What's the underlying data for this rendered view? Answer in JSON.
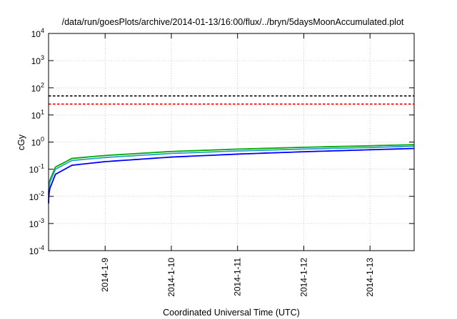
{
  "chart_data": {
    "type": "line",
    "title": "/data/run/goesPlots/archive/2014-01-13/16:00/flux/../bryn/5daysMoonAccumulated.plot",
    "xlabel": "Coordinated Universal Time (UTC)",
    "ylabel": "cGy",
    "yscale": "log",
    "ylim": [
      0.0001,
      10000
    ],
    "xlim": [
      "2014-01-08T03:30",
      "2014-01-13T16:00"
    ],
    "x_ticks": [
      {
        "x": "2014-01-09",
        "label": "2014-1-9"
      },
      {
        "x": "2014-01-10",
        "label": "2014-1-10"
      },
      {
        "x": "2014-01-11",
        "label": "2014-1-11"
      },
      {
        "x": "2014-01-12",
        "label": "2014-1-12"
      },
      {
        "x": "2014-01-13",
        "label": "2014-1-13"
      }
    ],
    "y_ticks": [
      {
        "y": 0.0001,
        "base": "10",
        "exp": "-4"
      },
      {
        "y": 0.001,
        "base": "10",
        "exp": "-3"
      },
      {
        "y": 0.01,
        "base": "10",
        "exp": "-2"
      },
      {
        "y": 0.1,
        "base": "10",
        "exp": "-1"
      },
      {
        "y": 1,
        "base": "10",
        "exp": "0"
      },
      {
        "y": 10,
        "base": "10",
        "exp": "1"
      },
      {
        "y": 100,
        "base": "10",
        "exp": "2"
      },
      {
        "y": 1000,
        "base": "10",
        "exp": "3"
      },
      {
        "y": 10000,
        "base": "10",
        "exp": "4"
      }
    ],
    "grid": true,
    "thresholds": [
      {
        "y": 50,
        "color": "#000000",
        "style": "dashed"
      },
      {
        "y": 25,
        "color": "#ff0000",
        "style": "dashed"
      }
    ],
    "series": [
      {
        "color": "#00aa00",
        "x": [
          "2014-01-08T03:30",
          "2014-01-08T04:00",
          "2014-01-08T06:00",
          "2014-01-08T12:00",
          "2014-01-09T00:00",
          "2014-01-10T00:00",
          "2014-01-11T00:00",
          "2014-01-12T00:00",
          "2014-01-13T00:00",
          "2014-01-13T16:00"
        ],
        "values": [
          0.011,
          0.04,
          0.12,
          0.25,
          0.32,
          0.45,
          0.55,
          0.64,
          0.73,
          0.8
        ]
      },
      {
        "color": "#2aa0c8",
        "x": [
          "2014-01-08T03:30",
          "2014-01-08T04:00",
          "2014-01-08T06:00",
          "2014-01-08T12:00",
          "2014-01-09T00:00",
          "2014-01-10T00:00",
          "2014-01-11T00:00",
          "2014-01-12T00:00",
          "2014-01-13T00:00",
          "2014-01-13T16:00"
        ],
        "values": [
          0.009,
          0.033,
          0.1,
          0.21,
          0.27,
          0.38,
          0.47,
          0.55,
          0.63,
          0.7
        ]
      },
      {
        "color": "#0000ff",
        "x": [
          "2014-01-08T03:30",
          "2014-01-08T04:00",
          "2014-01-08T06:00",
          "2014-01-08T12:00",
          "2014-01-09T00:00",
          "2014-01-10T00:00",
          "2014-01-11T00:00",
          "2014-01-12T00:00",
          "2014-01-13T00:00",
          "2014-01-13T16:00"
        ],
        "values": [
          0.0055,
          0.02,
          0.065,
          0.14,
          0.19,
          0.28,
          0.36,
          0.44,
          0.52,
          0.58
        ]
      }
    ]
  }
}
